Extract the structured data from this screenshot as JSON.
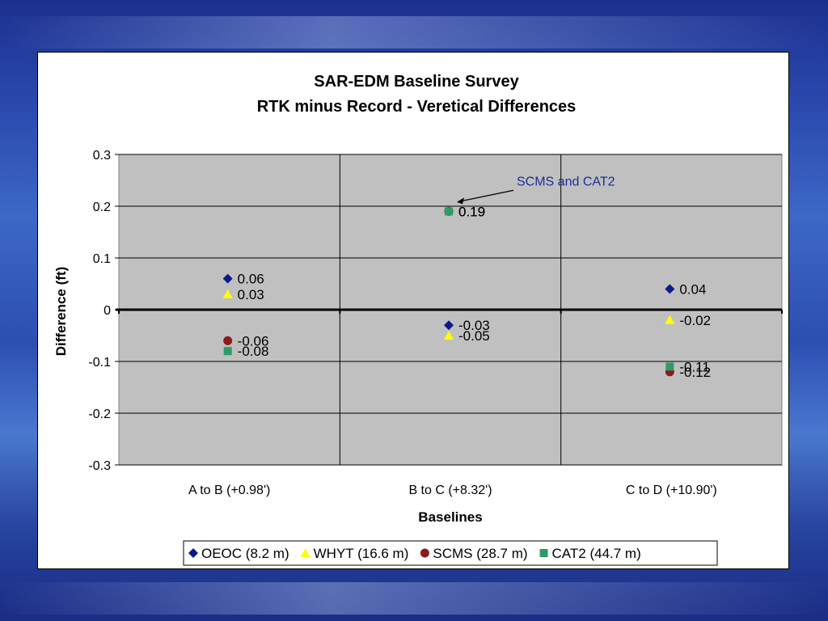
{
  "chart_data": {
    "type": "scatter",
    "title": "SAR-EDM Baseline Survey",
    "subtitle": "RTK minus Record - Veretical Differences",
    "xlabel": "Baselines",
    "ylabel": "Difference (ft)",
    "ylim": [
      -0.3,
      0.3
    ],
    "yticks": [
      "0.3",
      "0.2",
      "0.1",
      "0",
      "-0.1",
      "-0.2",
      "-0.3"
    ],
    "ytick_values": [
      0.3,
      0.2,
      0.1,
      0,
      -0.1,
      -0.2,
      -0.3
    ],
    "categories": [
      "A to B (+0.98')",
      "B to C (+8.32')",
      "C to D (+10.90')"
    ],
    "grid": true,
    "legend_position": "bottom",
    "series": [
      {
        "name": "OEOC (8.2 m)",
        "marker": "diamond",
        "color": "#0a1a8c",
        "points": [
          {
            "category": 0,
            "y": 0.06,
            "label": "0.06"
          },
          {
            "category": 1,
            "y": -0.03,
            "label": "-0.03"
          },
          {
            "category": 2,
            "y": 0.04,
            "label": "0.04"
          }
        ]
      },
      {
        "name": "WHYT (16.6 m)",
        "marker": "triangle",
        "color": "#ffff00",
        "points": [
          {
            "category": 0,
            "y": 0.03,
            "label": "0.03"
          },
          {
            "category": 1,
            "y": -0.05,
            "label": "-0.05"
          },
          {
            "category": 2,
            "y": -0.02,
            "label": "-0.02"
          }
        ]
      },
      {
        "name": "SCMS (28.7 m)",
        "marker": "circle",
        "color": "#8b1a1a",
        "points": [
          {
            "category": 0,
            "y": -0.06,
            "label": "-0.06"
          },
          {
            "category": 1,
            "y": 0.19,
            "label": "0.19"
          },
          {
            "category": 2,
            "y": -0.12,
            "label": "-0.12"
          }
        ]
      },
      {
        "name": "CAT2 (44.7 m)",
        "marker": "square",
        "color": "#2e9a6a",
        "points": [
          {
            "category": 0,
            "y": -0.08,
            "label": "-0.08"
          },
          {
            "category": 1,
            "y": 0.19,
            "label": "0.19"
          },
          {
            "category": 2,
            "y": -0.11,
            "label": "-0.11"
          }
        ]
      }
    ],
    "annotation": {
      "text": "SCMS and CAT2",
      "category": 1,
      "y": 0.19
    }
  }
}
